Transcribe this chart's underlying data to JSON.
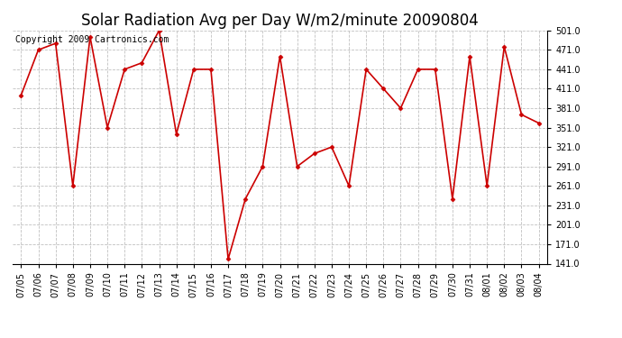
{
  "title": "Solar Radiation Avg per Day W/m2/minute 20090804",
  "copyright_text": "Copyright 2009 Cartronics.com",
  "dates": [
    "07/05",
    "07/06",
    "07/07",
    "07/08",
    "07/09",
    "07/10",
    "07/11",
    "07/12",
    "07/13",
    "07/14",
    "07/15",
    "07/16",
    "07/17",
    "07/18",
    "07/19",
    "07/20",
    "07/21",
    "07/22",
    "07/23",
    "07/24",
    "07/25",
    "07/26",
    "07/27",
    "07/28",
    "07/29",
    "07/30",
    "07/31",
    "08/01",
    "08/02",
    "08/03",
    "08/04"
  ],
  "values": [
    401,
    471,
    481,
    261,
    491,
    351,
    441,
    451,
    501,
    341,
    441,
    441,
    148,
    241,
    291,
    461,
    291,
    311,
    321,
    261,
    441,
    411,
    381,
    441,
    441,
    241,
    461,
    261,
    476,
    371,
    358
  ],
  "line_color": "#cc0000",
  "marker": "D",
  "marker_size": 2.5,
  "marker_color": "#cc0000",
  "background_color": "#ffffff",
  "grid_color": "#c0c0c0",
  "ylim_min": 141.0,
  "ylim_max": 501.0,
  "ytick_labels": [
    141.0,
    171.0,
    201.0,
    231.0,
    261.0,
    291.0,
    321.0,
    351.0,
    381.0,
    411.0,
    441.0,
    471.0,
    501.0
  ],
  "title_fontsize": 12,
  "copyright_fontsize": 7,
  "tick_fontsize": 7
}
